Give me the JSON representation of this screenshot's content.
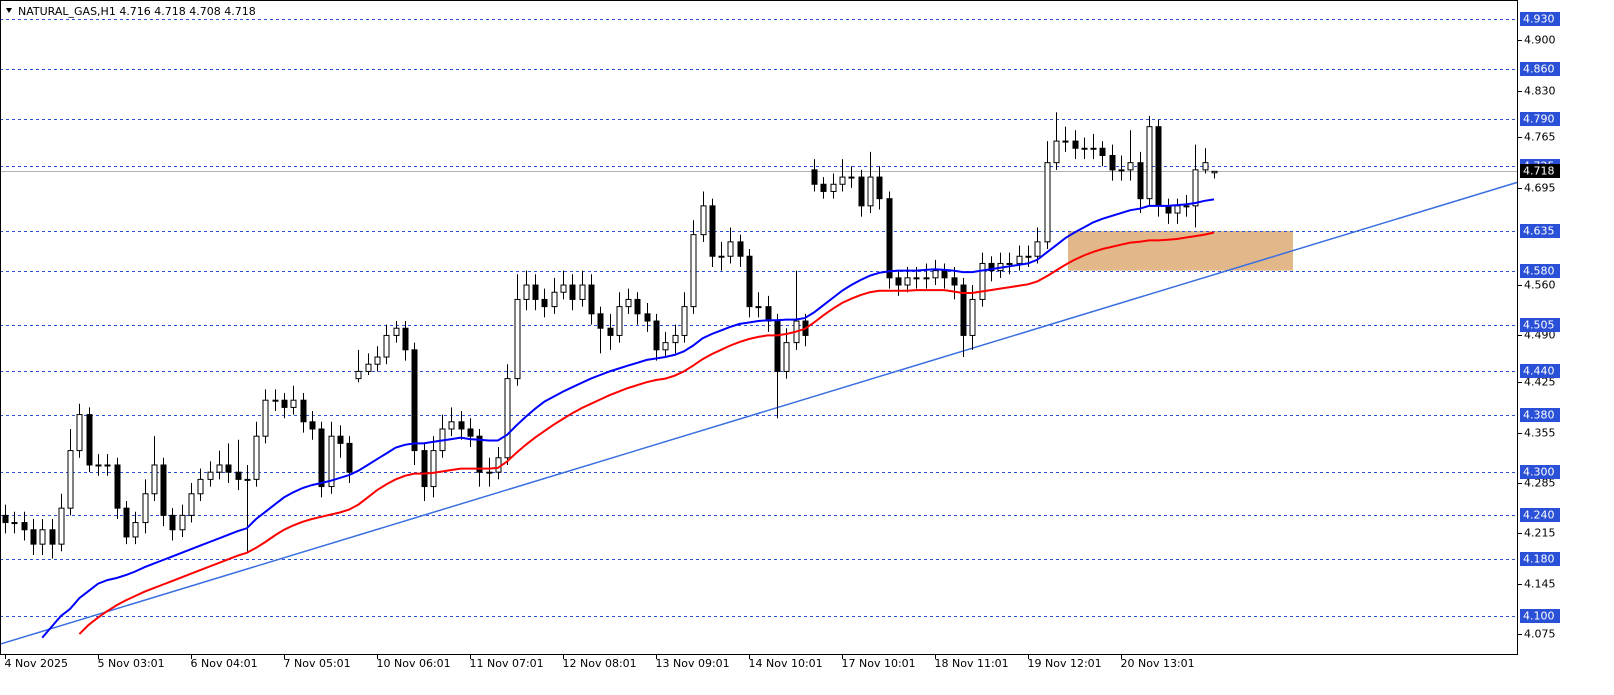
{
  "chart_data": {
    "type": "candlestick",
    "title": "NATURAL_GAS,H1  4.716 4.718 4.708 4.718",
    "categories": [
      "4 Nov 2025",
      null,
      null,
      null,
      null,
      null,
      null,
      null,
      null,
      null,
      "5 Nov 03:01",
      null,
      null,
      null,
      null,
      null,
      null,
      null,
      null,
      null,
      "6 Nov 04:01",
      null,
      null,
      null,
      null,
      null,
      null,
      null,
      null,
      null,
      "7 Nov 05:01",
      null,
      null,
      null,
      null,
      null,
      null,
      null,
      null,
      null,
      "10 Nov 06:01",
      null,
      null,
      null,
      null,
      null,
      null,
      null,
      null,
      null,
      "11 Nov 07:01",
      null,
      null,
      null,
      null,
      null,
      null,
      null,
      null,
      null,
      "12 Nov 08:01",
      null,
      null,
      null,
      null,
      null,
      null,
      null,
      null,
      null,
      "13 Nov 09:01",
      null,
      null,
      null,
      null,
      null,
      null,
      null,
      null,
      null,
      "14 Nov 10:01",
      null,
      null,
      null,
      null,
      null,
      null,
      null,
      null,
      null,
      "17 Nov 10:01",
      null,
      null,
      null,
      null,
      null,
      null,
      null,
      null,
      null,
      "18 Nov 11:01",
      null,
      null,
      null,
      null,
      null,
      null,
      null,
      null,
      null,
      "19 Nov 12:01",
      null,
      null,
      null,
      null,
      null,
      null,
      null,
      null,
      null,
      "20 Nov 13:01",
      null,
      null,
      null,
      null,
      null,
      null,
      null,
      null,
      null,
      null
    ],
    "open": [
      4.24,
      4.23,
      4.23,
      4.22,
      4.2,
      4.22,
      4.2,
      4.25,
      4.33,
      4.38,
      4.31,
      4.31,
      4.31,
      4.25,
      4.21,
      4.23,
      4.27,
      4.31,
      4.24,
      4.22,
      4.24,
      4.27,
      4.29,
      4.3,
      4.31,
      4.3,
      4.29,
      4.29,
      4.35,
      4.4,
      4.4,
      4.39,
      4.4,
      4.37,
      4.36,
      4.28,
      4.35,
      4.34,
      4.43,
      4.44,
      4.45,
      4.46,
      4.49,
      4.5,
      4.47,
      4.33,
      4.28,
      4.33,
      4.36,
      4.37,
      4.36,
      4.35,
      4.3,
      4.3,
      4.32,
      4.43,
      4.54,
      4.56,
      4.54,
      4.53,
      4.55,
      4.56,
      4.54,
      4.56,
      4.52,
      4.5,
      4.49,
      4.53,
      4.54,
      4.52,
      4.51,
      4.47,
      4.48,
      4.49,
      4.53,
      4.63,
      4.67,
      4.6,
      4.6,
      4.62,
      4.6,
      4.53,
      4.53,
      4.51,
      4.44,
      4.48,
      4.51,
      4.72,
      4.7,
      4.69,
      4.7,
      4.71,
      4.71,
      4.67,
      4.71,
      4.68,
      4.57,
      4.56,
      4.57,
      4.57,
      4.57,
      4.58,
      4.57,
      4.56,
      4.49,
      4.54,
      4.59,
      4.58,
      4.59,
      4.59,
      4.6,
      4.6,
      4.62,
      4.73,
      4.76,
      4.76,
      4.75,
      4.75,
      4.75,
      4.74,
      4.72,
      4.72,
      4.73,
      4.68,
      4.78,
      4.67,
      4.66,
      4.67,
      4.67,
      4.72,
      4.716
    ],
    "high": [
      4.255,
      4.245,
      4.245,
      4.235,
      4.235,
      4.235,
      4.27,
      4.36,
      4.395,
      4.39,
      4.325,
      4.325,
      4.32,
      4.26,
      4.245,
      4.29,
      4.35,
      4.32,
      4.25,
      4.255,
      4.285,
      4.305,
      4.315,
      4.33,
      4.34,
      4.345,
      4.31,
      4.37,
      4.415,
      4.415,
      4.41,
      4.42,
      4.41,
      4.385,
      4.37,
      4.37,
      4.365,
      4.35,
      4.47,
      4.465,
      4.475,
      4.505,
      4.51,
      4.51,
      4.48,
      4.34,
      4.35,
      4.38,
      4.39,
      4.385,
      4.375,
      4.36,
      4.32,
      4.335,
      4.45,
      4.575,
      4.58,
      4.575,
      4.555,
      4.57,
      4.58,
      4.575,
      4.58,
      4.575,
      4.53,
      4.52,
      4.55,
      4.555,
      4.55,
      4.535,
      4.52,
      4.495,
      4.505,
      4.55,
      4.65,
      4.69,
      4.68,
      4.62,
      4.64,
      4.63,
      4.61,
      4.55,
      4.545,
      4.52,
      4.5,
      4.58,
      4.52,
      4.735,
      4.71,
      4.715,
      4.735,
      4.725,
      4.72,
      4.745,
      4.725,
      4.69,
      4.58,
      4.585,
      4.585,
      4.59,
      4.595,
      4.59,
      4.585,
      4.57,
      4.56,
      4.605,
      4.6,
      4.605,
      4.605,
      4.615,
      4.615,
      4.64,
      4.76,
      4.8,
      4.78,
      4.775,
      4.765,
      4.77,
      4.76,
      4.755,
      4.74,
      4.775,
      4.745,
      4.795,
      4.79,
      4.68,
      4.68,
      4.685,
      4.755,
      4.75,
      4.718
    ],
    "low": [
      4.215,
      4.215,
      4.205,
      4.185,
      4.185,
      4.18,
      4.19,
      4.24,
      4.32,
      4.3,
      4.295,
      4.295,
      4.235,
      4.2,
      4.2,
      4.215,
      4.26,
      4.225,
      4.205,
      4.21,
      4.23,
      4.26,
      4.28,
      4.29,
      4.285,
      4.275,
      4.19,
      4.28,
      4.34,
      4.385,
      4.375,
      4.38,
      4.355,
      4.345,
      4.265,
      4.27,
      4.32,
      4.285,
      4.425,
      4.435,
      4.44,
      4.45,
      4.48,
      4.455,
      4.31,
      4.26,
      4.265,
      4.32,
      4.35,
      4.345,
      4.335,
      4.28,
      4.28,
      4.29,
      4.31,
      4.42,
      4.525,
      4.525,
      4.515,
      4.52,
      4.54,
      4.525,
      4.53,
      4.505,
      4.465,
      4.47,
      4.48,
      4.52,
      4.505,
      4.495,
      4.455,
      4.46,
      4.465,
      4.48,
      4.52,
      4.62,
      4.585,
      4.58,
      4.59,
      4.585,
      4.515,
      4.515,
      4.495,
      4.375,
      4.43,
      4.47,
      4.475,
      4.69,
      4.68,
      4.68,
      4.69,
      4.695,
      4.655,
      4.66,
      4.665,
      4.555,
      4.545,
      4.55,
      4.555,
      4.555,
      4.56,
      4.555,
      4.54,
      4.46,
      4.47,
      4.53,
      4.565,
      4.57,
      4.575,
      4.58,
      4.585,
      4.59,
      4.61,
      4.72,
      4.745,
      4.735,
      4.735,
      4.735,
      4.725,
      4.705,
      4.705,
      4.705,
      4.66,
      4.67,
      4.655,
      4.645,
      4.645,
      4.655,
      4.64,
      4.715,
      4.708
    ],
    "close": [
      4.23,
      4.23,
      4.22,
      4.2,
      4.22,
      4.2,
      4.25,
      4.33,
      4.38,
      4.31,
      4.31,
      4.31,
      4.25,
      4.21,
      4.23,
      4.27,
      4.31,
      4.24,
      4.22,
      4.24,
      4.27,
      4.29,
      4.3,
      4.31,
      4.3,
      4.29,
      4.29,
      4.35,
      4.4,
      4.4,
      4.39,
      4.4,
      4.37,
      4.36,
      4.28,
      4.35,
      4.34,
      4.3,
      4.44,
      4.45,
      4.46,
      4.49,
      4.5,
      4.47,
      4.33,
      4.28,
      4.33,
      4.36,
      4.37,
      4.36,
      4.35,
      4.3,
      4.3,
      4.32,
      4.43,
      4.54,
      4.56,
      4.54,
      4.53,
      4.55,
      4.56,
      4.54,
      4.56,
      4.52,
      4.5,
      4.49,
      4.53,
      4.54,
      4.52,
      4.51,
      4.47,
      4.48,
      4.49,
      4.53,
      4.63,
      4.67,
      4.6,
      4.6,
      4.62,
      4.6,
      4.53,
      4.53,
      4.51,
      4.44,
      4.48,
      4.51,
      4.49,
      4.7,
      4.69,
      4.7,
      4.71,
      4.71,
      4.67,
      4.71,
      4.68,
      4.57,
      4.56,
      4.57,
      4.57,
      4.57,
      4.58,
      4.57,
      4.56,
      4.49,
      4.54,
      4.59,
      4.58,
      4.59,
      4.59,
      4.6,
      4.6,
      4.62,
      4.73,
      4.76,
      4.76,
      4.75,
      4.75,
      4.75,
      4.74,
      4.72,
      4.72,
      4.73,
      4.68,
      4.78,
      4.67,
      4.66,
      4.67,
      4.67,
      4.72,
      4.73,
      4.718
    ],
    "up_color": "#ffffff",
    "down_color": "#000000",
    "moving_averages": [
      {
        "color": "#0000ff",
        "values": [
          null,
          null,
          null,
          null,
          4.07,
          4.085,
          4.1,
          4.11,
          4.125,
          4.135,
          4.145,
          4.15,
          4.153,
          4.157,
          4.162,
          4.168,
          4.173,
          4.178,
          4.183,
          4.188,
          4.193,
          4.198,
          4.203,
          4.208,
          4.213,
          4.218,
          4.222,
          4.235,
          4.245,
          4.255,
          4.265,
          4.272,
          4.278,
          4.282,
          4.285,
          4.288,
          4.292,
          4.296,
          4.302,
          4.31,
          4.318,
          4.326,
          4.334,
          4.338,
          4.34,
          4.34,
          4.342,
          4.344,
          4.346,
          4.348,
          4.346,
          4.345,
          4.344,
          4.344,
          4.352,
          4.365,
          4.377,
          4.388,
          4.398,
          4.405,
          4.412,
          4.418,
          4.424,
          4.43,
          4.435,
          4.44,
          4.444,
          4.448,
          4.452,
          4.456,
          4.458,
          4.46,
          4.463,
          4.468,
          4.476,
          4.486,
          4.492,
          4.497,
          4.502,
          4.506,
          4.508,
          4.51,
          4.511,
          4.511,
          4.512,
          4.512,
          4.514,
          4.522,
          4.532,
          4.542,
          4.552,
          4.56,
          4.567,
          4.573,
          4.577,
          4.579,
          4.58,
          4.58,
          4.58,
          4.581,
          4.582,
          4.581,
          4.58,
          4.578,
          4.578,
          4.58,
          4.582,
          4.584,
          4.586,
          4.588,
          4.59,
          4.595,
          4.605,
          4.615,
          4.625,
          4.633,
          4.64,
          4.647,
          4.652,
          4.656,
          4.66,
          4.664,
          4.666,
          4.67,
          4.67,
          4.67,
          4.671,
          4.672,
          4.674,
          4.677,
          4.679
        ]
      },
      {
        "color": "#ff0000",
        "values": [
          null,
          null,
          null,
          null,
          null,
          null,
          null,
          null,
          4.075,
          4.088,
          4.098,
          4.107,
          4.115,
          4.122,
          4.128,
          4.134,
          4.139,
          4.144,
          4.149,
          4.154,
          4.159,
          4.164,
          4.169,
          4.174,
          4.179,
          4.184,
          4.188,
          4.195,
          4.203,
          4.212,
          4.22,
          4.226,
          4.231,
          4.235,
          4.238,
          4.241,
          4.244,
          4.248,
          4.255,
          4.265,
          4.275,
          4.283,
          4.29,
          4.295,
          4.298,
          4.298,
          4.299,
          4.301,
          4.303,
          4.305,
          4.305,
          4.305,
          4.305,
          4.306,
          4.315,
          4.327,
          4.338,
          4.348,
          4.357,
          4.366,
          4.374,
          4.382,
          4.389,
          4.395,
          4.401,
          4.407,
          4.412,
          4.417,
          4.421,
          4.425,
          4.428,
          4.43,
          4.434,
          4.44,
          4.448,
          4.457,
          4.464,
          4.47,
          4.476,
          4.481,
          4.485,
          4.488,
          4.49,
          4.49,
          4.492,
          4.495,
          4.499,
          4.508,
          4.518,
          4.527,
          4.535,
          4.541,
          4.546,
          4.55,
          4.552,
          4.552,
          4.552,
          4.552,
          4.553,
          4.553,
          4.553,
          4.553,
          4.551,
          4.549,
          4.549,
          4.551,
          4.553,
          4.555,
          4.557,
          4.559,
          4.561,
          4.565,
          4.572,
          4.58,
          4.588,
          4.595,
          4.601,
          4.606,
          4.61,
          4.613,
          4.616,
          4.619,
          4.62,
          4.622,
          4.622,
          4.623,
          4.624,
          4.626,
          4.628,
          4.63,
          4.633
        ]
      }
    ],
    "trendline": {
      "color": "#3a6fe0",
      "values": [
        4.061,
        4.703
      ]
    },
    "zone": {
      "color": "#e2b88a",
      "range": [
        4.58,
        4.635
      ]
    },
    "ylim": [
      4.046,
      4.956
    ],
    "yticks": [
      {
        "value": 4.9,
        "label": "4.900"
      },
      {
        "value": 4.83,
        "label": "4.830"
      },
      4.765,
      4.695,
      {
        "value": 4.56,
        "label": "4.560"
      },
      {
        "value": 4.49,
        "label": "4.490"
      },
      4.425,
      4.355,
      4.285,
      4.215,
      4.145,
      4.075
    ],
    "levels": [
      {
        "value": 4.93,
        "label": "4.930"
      },
      {
        "value": 4.86,
        "label": "4.860"
      },
      {
        "value": 4.79,
        "label": "4.790"
      },
      4.725,
      4.635,
      {
        "value": 4.58,
        "label": "4.580"
      },
      4.505,
      {
        "value": 4.44,
        "label": "4.440"
      },
      {
        "value": 4.38,
        "label": "4.380"
      },
      {
        "value": 4.3,
        "label": "4.300"
      },
      {
        "value": 4.24,
        "label": "4.240"
      },
      {
        "value": 4.18,
        "label": "4.180"
      },
      {
        "value": 4.1,
        "label": "4.100"
      }
    ],
    "level_color": "#2b50d8",
    "current_price": 4.718
  }
}
